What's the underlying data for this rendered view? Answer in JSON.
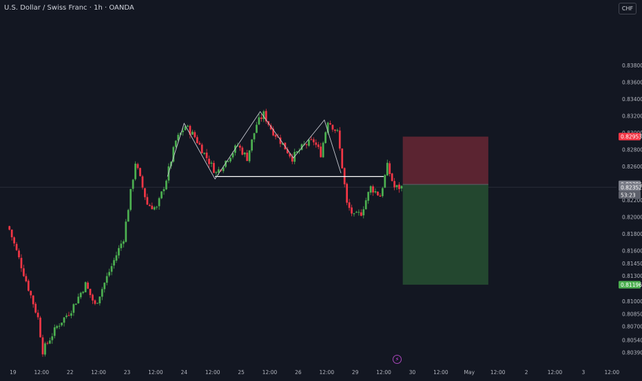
{
  "header": {
    "symbol_title": "U.S. Dollar / Swiss Franc · 1h · OANDA"
  },
  "currency_button": "CHF",
  "flash_icon": "lightning-icon",
  "colors": {
    "background": "#131722",
    "up": "#4caf50",
    "down": "#f23645",
    "wick_up": "#4caf50",
    "wick_down": "#f23645",
    "stop_zone": "#5b2431",
    "target_zone": "#23472f",
    "pattern_line": "#c7c9d1",
    "neckline": "#ffffff",
    "axis_text": "#b2b5be",
    "crosshair": "#2a2e39"
  },
  "chart_data": {
    "type": "candlestick",
    "ylim": [
      0.80351,
      0.84411
    ],
    "y_ticks": [
      {
        "label": "0.83800",
        "value": 0.838
      },
      {
        "label": "0.83600",
        "value": 0.836
      },
      {
        "label": "0.83400",
        "value": 0.834
      },
      {
        "label": "0.83200",
        "value": 0.832
      },
      {
        "label": "0.83000",
        "value": 0.83
      },
      {
        "label": "0.82800",
        "value": 0.828
      },
      {
        "label": "0.82600",
        "value": 0.826
      },
      {
        "label": "0.82200",
        "value": 0.822
      },
      {
        "label": "0.82000",
        "value": 0.82
      },
      {
        "label": "0.81800",
        "value": 0.818
      },
      {
        "label": "0.81600",
        "value": 0.816
      },
      {
        "label": "0.81450",
        "value": 0.8145
      },
      {
        "label": "0.81300",
        "value": 0.813
      },
      {
        "label": "0.81000",
        "value": 0.81
      },
      {
        "label": "0.80850",
        "value": 0.8085
      },
      {
        "label": "0.80700",
        "value": 0.807
      },
      {
        "label": "0.80540",
        "value": 0.8054
      },
      {
        "label": "0.80390",
        "value": 0.8039
      }
    ],
    "x_ticks": [
      {
        "label": "19",
        "bar": 2
      },
      {
        "label": "12:00",
        "bar": 14
      },
      {
        "label": "22",
        "bar": 26
      },
      {
        "label": "12:00",
        "bar": 38
      },
      {
        "label": "23",
        "bar": 50
      },
      {
        "label": "12:00",
        "bar": 62
      },
      {
        "label": "24",
        "bar": 74
      },
      {
        "label": "12:00",
        "bar": 86
      },
      {
        "label": "25",
        "bar": 98
      },
      {
        "label": "12:00",
        "bar": 110
      },
      {
        "label": "26",
        "bar": 122
      },
      {
        "label": "12:00",
        "bar": 134
      },
      {
        "label": "29",
        "bar": 146
      },
      {
        "label": "12:00",
        "bar": 158
      },
      {
        "label": "30",
        "bar": 170
      },
      {
        "label": "12:00",
        "bar": 182
      },
      {
        "label": "May",
        "bar": 194
      },
      {
        "label": "12:00",
        "bar": 206
      },
      {
        "label": "2",
        "bar": 218
      },
      {
        "label": "12:00",
        "bar": 230
      },
      {
        "label": "3",
        "bar": 242
      },
      {
        "label": "12:00",
        "bar": 254
      }
    ],
    "price_labels": [
      {
        "text": "0.82953",
        "value": 0.82953,
        "color": "#f23645"
      },
      {
        "text": "0.82386",
        "value": 0.82386,
        "color": "#787b86"
      },
      {
        "text": "0.82352",
        "value": 0.82352,
        "color": "#787b86"
      },
      {
        "text": "53:23",
        "value": 0.82262,
        "color": "#5d606b"
      },
      {
        "text": "0.81196",
        "value": 0.81196,
        "color": "#4caf50"
      }
    ],
    "position": {
      "entry": 0.82386,
      "stop": 0.82953,
      "target": 0.81196,
      "start_bar": 166,
      "end_bar": 202
    },
    "neckline": {
      "price": 0.8248,
      "start_bar": 87,
      "end_bar": 158
    },
    "pattern": [
      {
        "bar": 67,
        "price": 0.8248
      },
      {
        "bar": 74,
        "price": 0.8311
      },
      {
        "bar": 87,
        "price": 0.8245
      },
      {
        "bar": 106,
        "price": 0.8325
      },
      {
        "bar": 120,
        "price": 0.827
      },
      {
        "bar": 133,
        "price": 0.8315
      },
      {
        "bar": 140,
        "price": 0.8252
      }
    ],
    "anchors": [
      {
        "bar": 0,
        "price": 0.8185
      },
      {
        "bar": 5,
        "price": 0.8142
      },
      {
        "bar": 12,
        "price": 0.808
      },
      {
        "bar": 14,
        "price": 0.8041
      },
      {
        "bar": 20,
        "price": 0.807
      },
      {
        "bar": 26,
        "price": 0.809
      },
      {
        "bar": 32,
        "price": 0.812
      },
      {
        "bar": 36,
        "price": 0.8095
      },
      {
        "bar": 42,
        "price": 0.8135
      },
      {
        "bar": 48,
        "price": 0.8175
      },
      {
        "bar": 53,
        "price": 0.8265
      },
      {
        "bar": 58,
        "price": 0.8215
      },
      {
        "bar": 62,
        "price": 0.821
      },
      {
        "bar": 66,
        "price": 0.8245
      },
      {
        "bar": 70,
        "price": 0.829
      },
      {
        "bar": 74,
        "price": 0.8308
      },
      {
        "bar": 78,
        "price": 0.8295
      },
      {
        "bar": 82,
        "price": 0.8275
      },
      {
        "bar": 87,
        "price": 0.8252
      },
      {
        "bar": 92,
        "price": 0.827
      },
      {
        "bar": 96,
        "price": 0.8285
      },
      {
        "bar": 100,
        "price": 0.827
      },
      {
        "bar": 104,
        "price": 0.831
      },
      {
        "bar": 107,
        "price": 0.8322
      },
      {
        "bar": 110,
        "price": 0.8305
      },
      {
        "bar": 114,
        "price": 0.829
      },
      {
        "bar": 119,
        "price": 0.827
      },
      {
        "bar": 124,
        "price": 0.8285
      },
      {
        "bar": 128,
        "price": 0.829
      },
      {
        "bar": 131,
        "price": 0.8275
      },
      {
        "bar": 134,
        "price": 0.8315
      },
      {
        "bar": 138,
        "price": 0.83
      },
      {
        "bar": 140,
        "price": 0.826
      },
      {
        "bar": 142,
        "price": 0.8215
      },
      {
        "bar": 145,
        "price": 0.82
      },
      {
        "bar": 148,
        "price": 0.8205
      },
      {
        "bar": 152,
        "price": 0.8235
      },
      {
        "bar": 156,
        "price": 0.8225
      },
      {
        "bar": 159,
        "price": 0.826
      },
      {
        "bar": 162,
        "price": 0.8235
      },
      {
        "bar": 165,
        "price": 0.82352
      }
    ]
  }
}
